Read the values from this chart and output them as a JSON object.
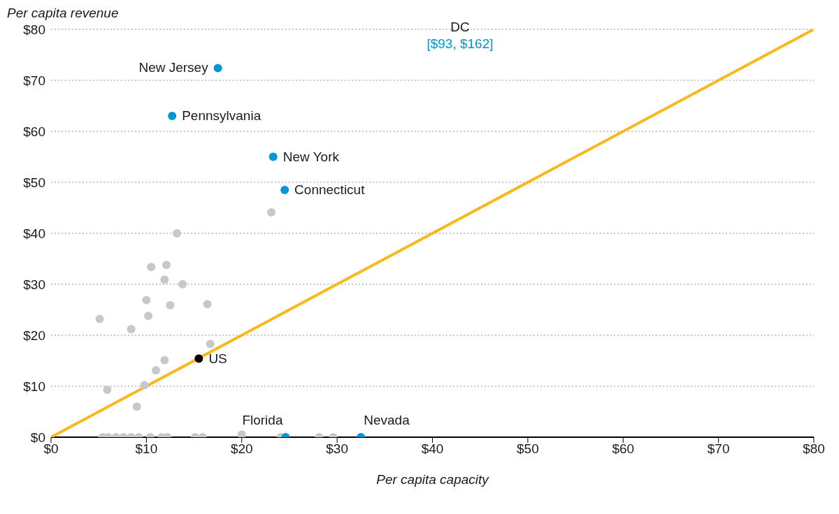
{
  "chart_data": {
    "type": "scatter",
    "xlabel": "Per capita capacity",
    "ylabel": "Per capita revenue",
    "xlim": [
      0,
      80
    ],
    "ylim": [
      0,
      80
    ],
    "xticks": [
      {
        "value": 0,
        "label": "$0"
      },
      {
        "value": 10,
        "label": "$10"
      },
      {
        "value": 20,
        "label": "$20"
      },
      {
        "value": 30,
        "label": "$30"
      },
      {
        "value": 40,
        "label": "$40"
      },
      {
        "value": 50,
        "label": "$50"
      },
      {
        "value": 60,
        "label": "$60"
      },
      {
        "value": 70,
        "label": "$70"
      },
      {
        "value": 80,
        "label": "$80"
      }
    ],
    "yticks": [
      {
        "value": 0,
        "label": "$0"
      },
      {
        "value": 10,
        "label": "$10"
      },
      {
        "value": 20,
        "label": "$20"
      },
      {
        "value": 30,
        "label": "$30"
      },
      {
        "value": 40,
        "label": "$40"
      },
      {
        "value": 50,
        "label": "$50"
      },
      {
        "value": 60,
        "label": "$60"
      },
      {
        "value": 70,
        "label": "$70"
      },
      {
        "value": 80,
        "label": "$80"
      }
    ],
    "grid": "y",
    "legend": false,
    "marker": "circle",
    "annotations": [
      "DC",
      "[$93, $162]"
    ],
    "series": [
      {
        "type": "line",
        "marker": "none",
        "color": "#fbb81c",
        "x": [
          0,
          80
        ],
        "values": [
          0,
          80
        ]
      },
      {
        "color": "#c8c8c8",
        "x": [
          5.1,
          5.9,
          8.4,
          9.0,
          9.8,
          10.0,
          10.2,
          10.5,
          11.0,
          11.9,
          11.9,
          12.1,
          12.5,
          13.2,
          13.8,
          16.4,
          16.7,
          23.1,
          20.0,
          5.4,
          6.0,
          6.8,
          7.6,
          8.4,
          9.2,
          10.4,
          11.6,
          12.2,
          15.1,
          15.9,
          24.1,
          28.1,
          29.6
        ],
        "values": [
          23.2,
          9.3,
          21.2,
          6.0,
          10.2,
          26.9,
          23.8,
          33.4,
          13.1,
          15.1,
          30.9,
          33.8,
          25.9,
          40.0,
          30.0,
          26.1,
          18.3,
          44.1,
          0.5,
          0,
          0,
          0,
          0,
          0,
          0,
          0,
          0,
          0,
          0,
          0,
          0,
          0,
          0
        ]
      },
      {
        "name": "New Jersey",
        "color": "#0096d6",
        "x": [
          17.5
        ],
        "values": [
          72.4
        ]
      },
      {
        "name": "Pennsylvania",
        "color": "#0096d6",
        "x": [
          12.7
        ],
        "values": [
          63.0
        ]
      },
      {
        "name": "New York",
        "color": "#0096d6",
        "x": [
          23.3
        ],
        "values": [
          55.0
        ]
      },
      {
        "name": "Connecticut",
        "color": "#0096d6",
        "x": [
          24.5
        ],
        "values": [
          48.5
        ]
      },
      {
        "name": "Florida",
        "color": "#0096d6",
        "x": [
          24.6
        ],
        "values": [
          0
        ]
      },
      {
        "name": "Nevada",
        "color": "#0096d6",
        "x": [
          32.5
        ],
        "values": [
          0
        ]
      },
      {
        "name": "US",
        "color": "#000000",
        "x": [
          15.5
        ],
        "values": [
          15.4
        ]
      }
    ]
  }
}
